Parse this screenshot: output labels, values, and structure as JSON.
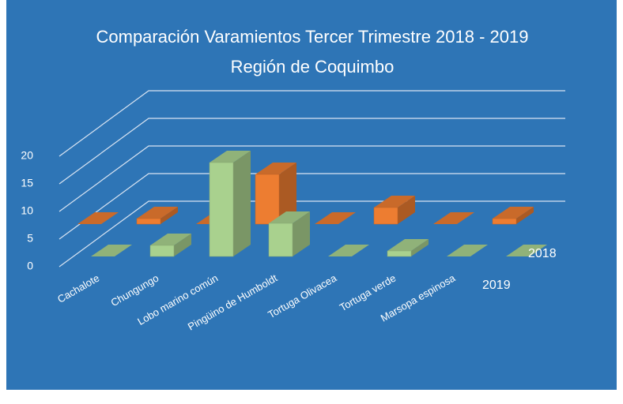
{
  "chart_data": {
    "type": "bar3d",
    "title": "Comparación Varamientos Tercer Trimestre 2018 - 2019",
    "subtitle": "Región de Coquimbo",
    "categories": [
      "Cachalote",
      "Chungungo",
      "Lobo marino común",
      "Pingüino de Humboldt",
      "Tortuga Olivacea",
      "Tortuga verde",
      "Marsopa espinosa",
      null
    ],
    "series": [
      {
        "name": "2018",
        "color": "#ed7d31",
        "values": [
          0,
          1,
          0,
          9,
          0,
          3,
          0,
          1
        ]
      },
      {
        "name": "2019",
        "color": "#a9d18e",
        "values": [
          0,
          2,
          17,
          6,
          0,
          1,
          0,
          0
        ]
      }
    ],
    "ylim": [
      0,
      20
    ],
    "yticks": [
      0,
      5,
      10,
      15,
      20
    ],
    "grid": true
  }
}
